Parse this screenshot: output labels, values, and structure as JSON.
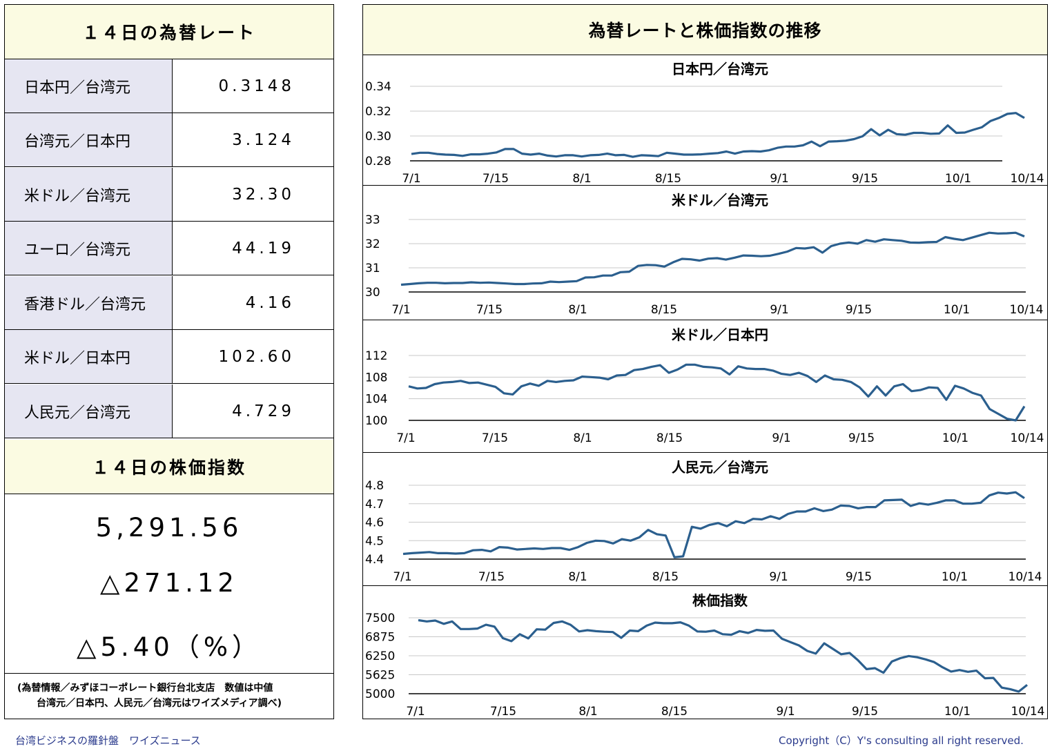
{
  "rates_panel": {
    "title": "１４日の為替レート",
    "rows": [
      {
        "label": "日本円／台湾元",
        "value": "0.3148"
      },
      {
        "label": "台湾元／日本円",
        "value": "3.124"
      },
      {
        "label": "米ドル／台湾元",
        "value": "32.30"
      },
      {
        "label": "ユーロ／台湾元",
        "value": "44.19"
      },
      {
        "label": "香港ドル／台湾元",
        "value": "4.16"
      },
      {
        "label": "米ドル／日本円",
        "value": "102.60"
      },
      {
        "label": "人民元／台湾元",
        "value": "4.729"
      }
    ]
  },
  "stock_panel": {
    "title": "１４日の株価指数",
    "index": "5,291.56",
    "change": "△271.12",
    "change_pct": "△5.40（%）"
  },
  "source_note": {
    "line1": "(為替情報／みずほコーポレート銀行台北支店　数値は中値",
    "line2": "　台湾元／日本円、人民元／台湾元はワイズメディア調べ)"
  },
  "charts_panel": {
    "title": "為替レートと株価指数の推移"
  },
  "footer": {
    "left": "台湾ビジネスの羅針盤　ワイズニュース",
    "right": "Copyright（C）Y's consulting all right reserved."
  },
  "colors": {
    "line": "#2b5f8e",
    "header_bg": "#fbfbe2",
    "label_bg": "#e6e6f2",
    "footer_text": "#2a3a8c"
  },
  "chart_data": [
    {
      "type": "line",
      "title": "日本円／台湾元",
      "ylim": [
        0.28,
        0.34
      ],
      "yticks": [
        "0.34",
        "0.32",
        "0.30",
        "0.28"
      ],
      "xticks": [
        "7/1",
        "7/15",
        "8/1",
        "8/15",
        "9/1",
        "9/15",
        "10/1",
        "10/14"
      ],
      "values": [
        0.2855,
        0.2865,
        0.2865,
        0.2855,
        0.285,
        0.2848,
        0.284,
        0.2852,
        0.2852,
        0.2858,
        0.2868,
        0.2895,
        0.2895,
        0.2858,
        0.285,
        0.2858,
        0.2842,
        0.2835,
        0.2845,
        0.2845,
        0.2835,
        0.2845,
        0.2848,
        0.2858,
        0.2845,
        0.2848,
        0.2832,
        0.2845,
        0.2842,
        0.2838,
        0.2865,
        0.2858,
        0.285,
        0.285,
        0.2852,
        0.2858,
        0.2862,
        0.2875,
        0.2858,
        0.2875,
        0.2878,
        0.2875,
        0.2885,
        0.2905,
        0.2915,
        0.2915,
        0.2925,
        0.2955,
        0.2918,
        0.2955,
        0.2958,
        0.2962,
        0.2975,
        0.2998,
        0.3055,
        0.3005,
        0.305,
        0.3015,
        0.301,
        0.3025,
        0.3025,
        0.3018,
        0.302,
        0.3085,
        0.3025,
        0.3028,
        0.305,
        0.307,
        0.312,
        0.3145,
        0.3178,
        0.3185,
        0.3145
      ]
    },
    {
      "type": "line",
      "title": "米ドル／台湾元",
      "ylim": [
        30,
        33
      ],
      "yticks": [
        "33",
        "32",
        "31",
        "30"
      ],
      "xticks": [
        "7/1",
        "7/15",
        "8/1",
        "8/15",
        "9/1",
        "9/15",
        "10/1",
        "10/14"
      ],
      "values": [
        30.3,
        30.33,
        30.36,
        30.38,
        30.38,
        30.36,
        30.37,
        30.37,
        30.4,
        30.38,
        30.39,
        30.37,
        30.35,
        30.33,
        30.33,
        30.35,
        30.36,
        30.43,
        30.41,
        30.43,
        30.45,
        30.6,
        30.61,
        30.68,
        30.68,
        30.82,
        30.84,
        31.08,
        31.12,
        31.11,
        31.05,
        31.23,
        31.37,
        31.35,
        31.3,
        31.38,
        31.4,
        31.34,
        31.42,
        31.51,
        31.5,
        31.48,
        31.5,
        31.58,
        31.67,
        31.82,
        31.8,
        31.85,
        31.63,
        31.9,
        32.0,
        32.05,
        32.0,
        32.15,
        32.08,
        32.18,
        32.15,
        32.12,
        32.05,
        32.04,
        32.06,
        32.07,
        32.27,
        32.2,
        32.15,
        32.25,
        32.35,
        32.45,
        32.42,
        32.43,
        32.45,
        32.3
      ]
    },
    {
      "type": "line",
      "title": "米ドル／日本円",
      "ylim": [
        100,
        112
      ],
      "yticks": [
        "112",
        "108",
        "104",
        "100"
      ],
      "xticks": [
        "7/1",
        "7/15",
        "8/1",
        "8/15",
        "9/1",
        "9/15",
        "10/1",
        "10/14"
      ],
      "values": [
        106.3,
        105.9,
        106.0,
        106.7,
        107.0,
        107.1,
        107.3,
        106.9,
        107.0,
        106.6,
        106.2,
        105.0,
        104.8,
        106.3,
        106.8,
        106.4,
        107.3,
        107.1,
        107.3,
        107.4,
        108.1,
        108.0,
        107.9,
        107.6,
        108.3,
        108.4,
        109.3,
        109.5,
        109.9,
        110.2,
        108.8,
        109.4,
        110.3,
        110.3,
        109.9,
        109.8,
        109.6,
        108.5,
        110.0,
        109.6,
        109.5,
        109.5,
        109.2,
        108.6,
        108.4,
        108.8,
        108.2,
        107.1,
        108.3,
        107.6,
        107.5,
        107.1,
        106.1,
        104.4,
        106.3,
        104.6,
        106.3,
        106.7,
        105.4,
        105.6,
        106.1,
        106.0,
        103.8,
        106.4,
        105.9,
        105.1,
        104.6,
        102.1,
        101.2,
        100.3,
        100.0,
        102.6
      ]
    },
    {
      "type": "line",
      "title": "人民元／台湾元",
      "ylim": [
        4.4,
        4.8
      ],
      "yticks": [
        "4.8",
        "4.7",
        "4.6",
        "4.5",
        "4.4"
      ],
      "xticks": [
        "7/1",
        "7/15",
        "8/1",
        "8/15",
        "9/1",
        "9/15",
        "10/1",
        "10/14"
      ],
      "values": [
        4.428,
        4.432,
        4.435,
        4.438,
        4.432,
        4.432,
        4.43,
        4.432,
        4.448,
        4.45,
        4.442,
        4.465,
        4.462,
        4.452,
        4.455,
        4.458,
        4.455,
        4.46,
        4.46,
        4.45,
        4.465,
        4.488,
        4.5,
        4.498,
        4.485,
        4.508,
        4.5,
        4.518,
        4.558,
        4.535,
        4.528,
        4.41,
        4.415,
        4.575,
        4.565,
        4.585,
        4.595,
        4.578,
        4.605,
        4.595,
        4.618,
        4.615,
        4.632,
        4.618,
        4.645,
        4.658,
        4.658,
        4.675,
        4.66,
        4.668,
        4.69,
        4.688,
        4.675,
        4.682,
        4.682,
        4.718,
        4.72,
        4.722,
        4.688,
        4.702,
        4.695,
        4.705,
        4.718,
        4.718,
        4.7,
        4.7,
        4.705,
        4.745,
        4.76,
        4.755,
        4.762,
        4.73
      ]
    },
    {
      "type": "line",
      "title": "株価指数",
      "ylim": [
        5000,
        7500
      ],
      "yticks": [
        "7500",
        "6875",
        "6250",
        "5625",
        "5000"
      ],
      "xticks": [
        "7/1",
        "7/15",
        "8/1",
        "8/15",
        "9/1",
        "9/15",
        "10/1",
        "10/14"
      ],
      "values": [
        7420,
        7380,
        7410,
        7300,
        7380,
        7130,
        7130,
        7145,
        7270,
        7210,
        6830,
        6730,
        6960,
        6820,
        7120,
        7110,
        7330,
        7380,
        7270,
        7050,
        7090,
        7060,
        7040,
        7030,
        6840,
        7080,
        7060,
        7240,
        7340,
        7320,
        7320,
        7350,
        7240,
        7050,
        7040,
        7080,
        6960,
        6940,
        7060,
        7000,
        7100,
        7070,
        7080,
        6810,
        6700,
        6590,
        6410,
        6320,
        6660,
        6480,
        6300,
        6340,
        6100,
        5810,
        5840,
        5690,
        6060,
        6170,
        6240,
        6200,
        6130,
        6040,
        5870,
        5730,
        5780,
        5720,
        5760,
        5510,
        5520,
        5200,
        5150,
        5070,
        5290
      ]
    }
  ]
}
